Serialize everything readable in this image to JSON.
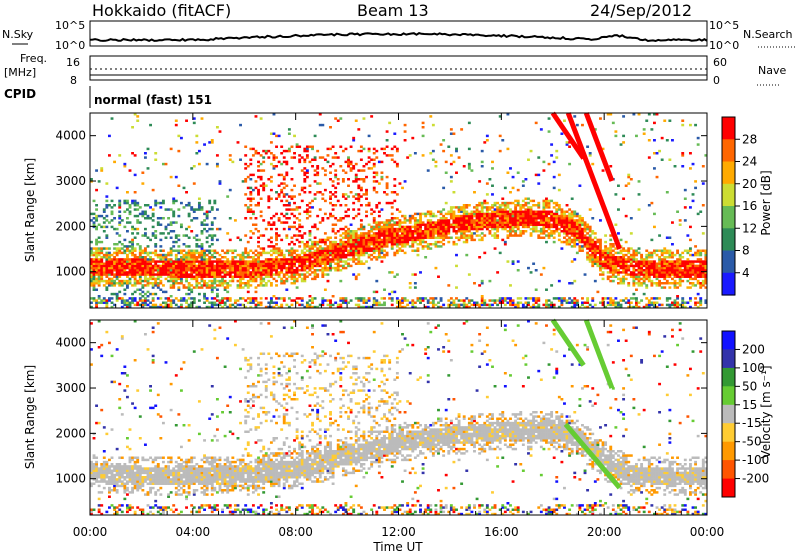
{
  "header": {
    "station": "Hokkaido (fitACF)",
    "beam": "Beam 13",
    "date": "24/Sep/2012"
  },
  "noise_panel": {
    "left_label": "N.Sky",
    "right_label": "N.Search",
    "ticks": [
      "10^5",
      "10^0"
    ]
  },
  "freq_panel": {
    "left_label_1": "Freq.",
    "left_label_2": "[MHz]",
    "left_ticks": [
      "16",
      "8"
    ],
    "right_label": "Nave",
    "right_ticks": [
      "60",
      "0"
    ]
  },
  "cpid": {
    "label": "CPID",
    "value": "normal (fast) 151"
  },
  "x_axis": {
    "label": "Time UT",
    "ticks": [
      "00:00",
      "04:00",
      "08:00",
      "12:00",
      "16:00",
      "20:00",
      "00:00"
    ]
  },
  "power_panel": {
    "ylabel": "Slant Range [km]",
    "yticks": [
      "1000",
      "2000",
      "3000",
      "4000"
    ],
    "colorbar_label": "Power [dB]",
    "colorbar_ticks": [
      "28",
      "24",
      "20",
      "16",
      "12",
      "8",
      "4"
    ]
  },
  "velocity_panel": {
    "ylabel": "Slant Range [km]",
    "yticks": [
      "1000",
      "2000",
      "3000",
      "4000"
    ],
    "colorbar_label": "Velocity [m s⁻¹]",
    "colorbar_ticks": [
      "200",
      "100",
      "50",
      "15",
      "-15",
      "-50",
      "-100",
      "-200"
    ]
  },
  "chart_data": [
    {
      "type": "heatmap",
      "panel": "power",
      "title": "",
      "xlabel": "Time UT",
      "ylabel": "Slant Range [km]",
      "xlim": [
        0,
        24
      ],
      "ylim": [
        200,
        4500
      ],
      "colorbar": {
        "label": "Power [dB]",
        "range": [
          0,
          30
        ],
        "colors": [
          "#1a1aff",
          "#2a5aa8",
          "#2e8b57",
          "#66bb55",
          "#ccdd33",
          "#ffaa00",
          "#ff6600",
          "#ff0000"
        ]
      },
      "main_echo_band_km": {
        "hours": [
          0,
          2,
          4,
          6,
          7,
          8,
          9,
          10,
          11,
          12,
          13,
          14,
          15,
          16,
          17,
          18,
          19,
          20,
          21,
          22,
          23,
          24
        ],
        "range": [
          1100,
          1100,
          1050,
          1050,
          1100,
          1150,
          1300,
          1500,
          1650,
          1800,
          1900,
          2000,
          2100,
          2150,
          2200,
          2150,
          1900,
          1250,
          1100,
          1050,
          1050,
          1050
        ]
      },
      "oblique_traces": [
        {
          "start_hour": 18.0,
          "start_km": 4500,
          "end_hour": 19.2,
          "end_km": 3500
        },
        {
          "start_hour": 18.6,
          "start_km": 4500,
          "end_hour": 20.6,
          "end_km": 1500
        },
        {
          "start_hour": 19.3,
          "start_km": 4500,
          "end_hour": 20.3,
          "end_km": 3000
        }
      ]
    },
    {
      "type": "heatmap",
      "panel": "velocity",
      "title": "",
      "xlabel": "Time UT",
      "ylabel": "Slant Range [km]",
      "xlim": [
        0,
        24
      ],
      "ylim": [
        200,
        4500
      ],
      "colorbar": {
        "label": "Velocity [m s^-1]",
        "range": [
          -200,
          200
        ],
        "colors": [
          "#ff0000",
          "#ff5500",
          "#ff9900",
          "#ffcc33",
          "#bbbbbb",
          "#66cc33",
          "#339933",
          "#3333aa",
          "#1111ff"
        ]
      },
      "ground_scatter_band_km": {
        "hours": [
          0,
          4,
          6,
          8,
          10,
          12,
          14,
          16,
          18,
          19,
          20,
          21,
          22,
          24
        ],
        "range": [
          1100,
          1050,
          1100,
          1200,
          1500,
          1800,
          1950,
          2050,
          2100,
          1900,
          1400,
          1100,
          1050,
          1050
        ]
      },
      "oblique_traces": [
        {
          "start_hour": 18.0,
          "start_km": 4500,
          "end_hour": 19.2,
          "end_km": 3500
        },
        {
          "start_hour": 18.5,
          "start_km": 2200,
          "end_hour": 20.6,
          "end_km": 800
        },
        {
          "start_hour": 19.3,
          "start_km": 4500,
          "end_hour": 20.3,
          "end_km": 3000
        }
      ]
    }
  ]
}
